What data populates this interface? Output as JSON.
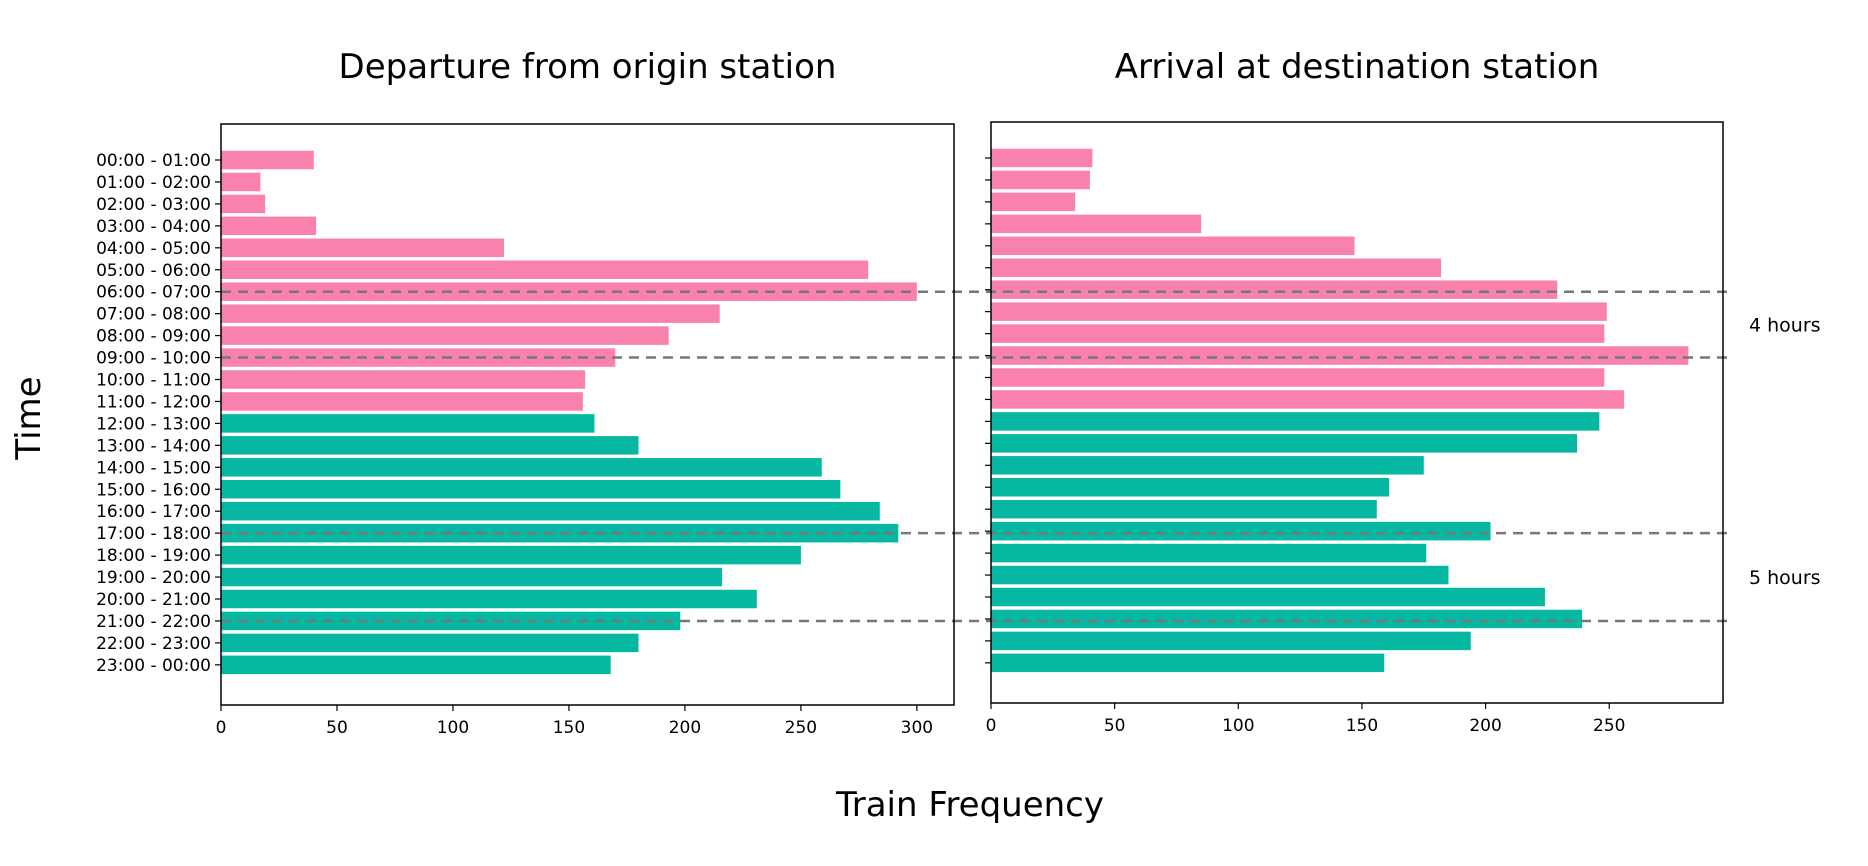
{
  "chart_data": {
    "type": "bar",
    "orientation": "horizontal",
    "shared_ylabel": "Time",
    "shared_xlabel": "Train Frequency",
    "categories": [
      "00:00 - 01:00",
      "01:00 - 02:00",
      "02:00 - 03:00",
      "03:00 - 04:00",
      "04:00 - 05:00",
      "05:00 - 06:00",
      "06:00 - 07:00",
      "07:00 - 08:00",
      "08:00 - 09:00",
      "09:00 - 10:00",
      "10:00 - 11:00",
      "11:00 - 12:00",
      "12:00 - 13:00",
      "13:00 - 14:00",
      "14:00 - 15:00",
      "15:00 - 16:00",
      "16:00 - 17:00",
      "17:00 - 18:00",
      "18:00 - 19:00",
      "19:00 - 20:00",
      "20:00 - 21:00",
      "21:00 - 22:00",
      "22:00 - 23:00",
      "23:00 - 00:00"
    ],
    "colors": {
      "am": "#f882ad",
      "pm": "#06b8a2",
      "reference_line": "#777777"
    },
    "am_category_count": 12,
    "reference_lines_at_categories": [
      "06:00 - 07:00",
      "09:00 - 10:00",
      "17:00 - 18:00",
      "21:00 - 22:00"
    ],
    "annotations": [
      {
        "text": "4 hours",
        "between": [
          "06:00 - 07:00",
          "09:00 - 10:00"
        ]
      },
      {
        "text": "5 hours",
        "between": [
          "17:00 - 18:00",
          "21:00 - 22:00"
        ]
      }
    ],
    "panels": [
      {
        "title": "Departure from origin station",
        "xlim": [
          0,
          316
        ],
        "xticks": [
          0,
          50,
          100,
          150,
          200,
          250,
          300
        ],
        "values": [
          40,
          17,
          19,
          41,
          122,
          279,
          300,
          215,
          193,
          170,
          157,
          156,
          161,
          180,
          259,
          267,
          284,
          292,
          250,
          216,
          231,
          198,
          180,
          168
        ],
        "show_category_labels": true
      },
      {
        "title": "Arrival at destination station",
        "xlim": [
          0,
          296
        ],
        "xticks": [
          0,
          50,
          100,
          150,
          200,
          250
        ],
        "values": [
          41,
          40,
          34,
          85,
          147,
          182,
          229,
          249,
          248,
          282,
          248,
          256,
          246,
          237,
          175,
          161,
          156,
          202,
          176,
          185,
          224,
          239,
          194,
          159
        ],
        "show_category_labels": false
      }
    ]
  }
}
